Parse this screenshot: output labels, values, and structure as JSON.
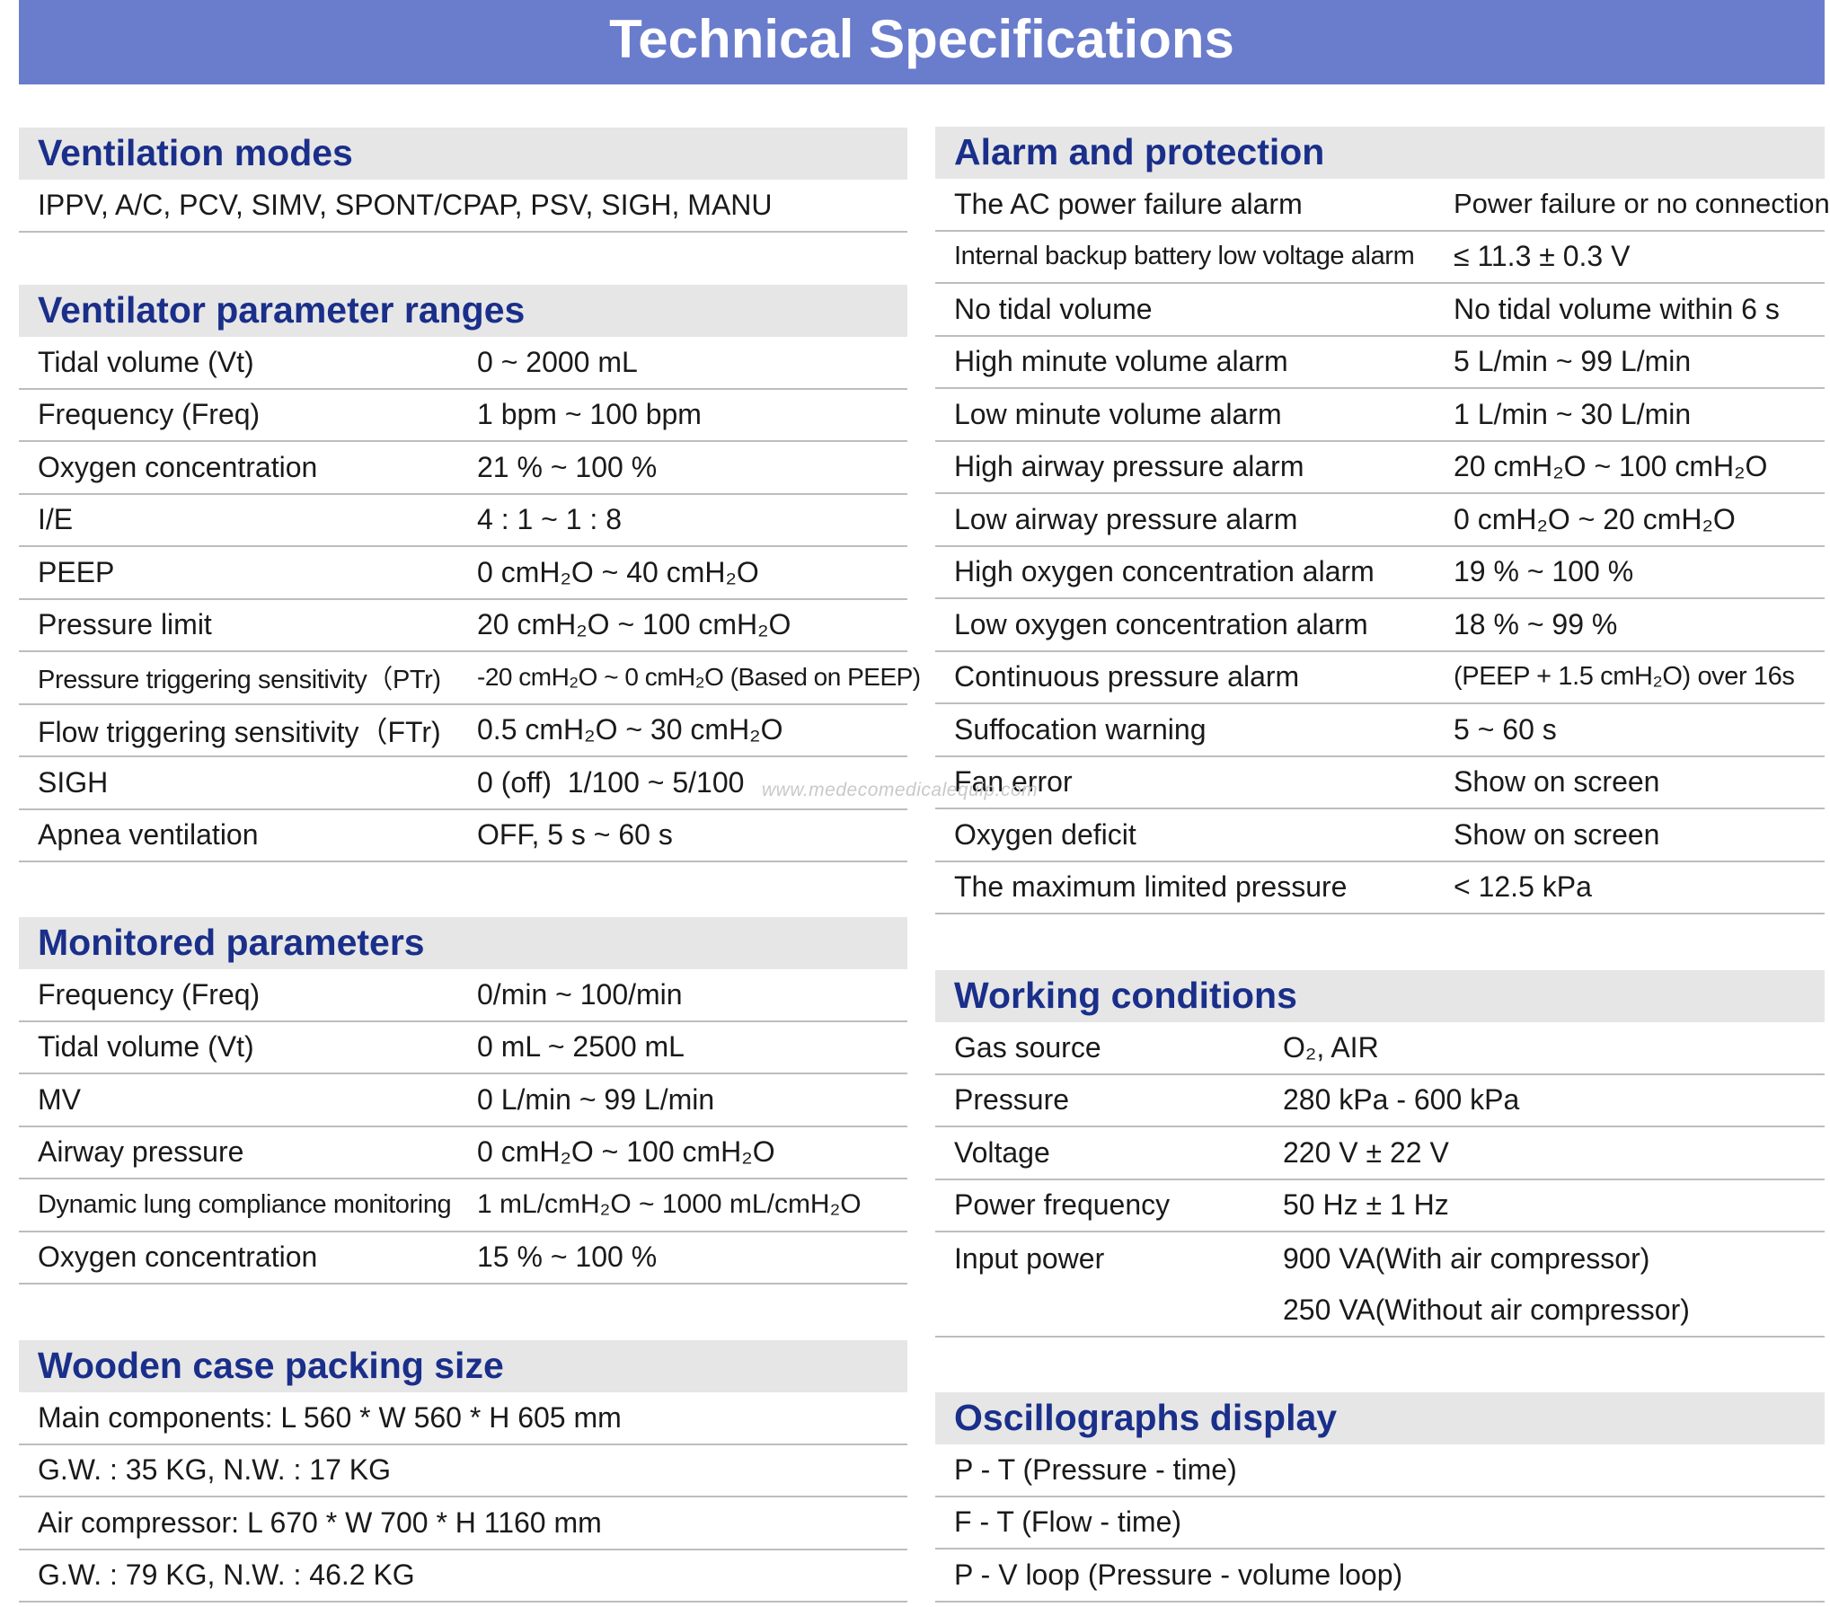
{
  "title": "Technical Specifications",
  "watermark": "www.medecomedicalequip.com",
  "colors": {
    "banner": "#6a7ccc",
    "heading": "#1a2f8a",
    "section_bg": "#e6e6e6",
    "divider": "#bdbdbd"
  },
  "ventilation_modes": {
    "title": "Ventilation modes",
    "text": "IPPV, A/C, PCV, SIMV, SPONT/CPAP, PSV, SIGH, MANU"
  },
  "ventilator_parameter_ranges": {
    "title": "Ventilator parameter ranges",
    "rows": [
      {
        "k": "Tidal volume (Vt)",
        "v": "0 ~ 2000 mL"
      },
      {
        "k": "Frequency (Freq)",
        "v": "1 bpm ~ 100 bpm"
      },
      {
        "k": "Oxygen concentration",
        "v": "21 % ~ 100 %"
      },
      {
        "k": "I/E",
        "v": "4 : 1 ~ 1 : 8"
      },
      {
        "k": "PEEP",
        "v": "0 cmH₂O ~ 40 cmH₂O"
      },
      {
        "k": "Pressure limit",
        "v": "20 cmH₂O ~ 100 cmH₂O"
      },
      {
        "k": "Pressure triggering sensitivity（PTr)",
        "v": "-20 cmH₂O ~ 0 cmH₂O (Based on PEEP)"
      },
      {
        "k": "Flow triggering sensitivity（FTr)",
        "v": "0.5 cmH₂O ~ 30 cmH₂O"
      },
      {
        "k": "SIGH",
        "v": "0 (off)  1/100 ~ 5/100"
      },
      {
        "k": "Apnea ventilation",
        "v": "OFF, 5 s ~ 60 s"
      }
    ]
  },
  "monitored_parameters": {
    "title": "Monitored parameters",
    "rows": [
      {
        "k": "Frequency (Freq)",
        "v": "0/min ~ 100/min"
      },
      {
        "k": "Tidal volume (Vt)",
        "v": "0 mL ~ 2500 mL"
      },
      {
        "k": "MV",
        "v": "0 L/min ~ 99 L/min"
      },
      {
        "k": "Airway pressure",
        "v": "0 cmH₂O ~ 100 cmH₂O"
      },
      {
        "k": "Dynamic lung compliance monitoring",
        "v": "1 mL/cmH₂O ~ 1000 mL/cmH₂O"
      },
      {
        "k": "Oxygen concentration",
        "v": "15 % ~ 100 %"
      }
    ]
  },
  "wooden_case_packing_size": {
    "title": "Wooden case packing size",
    "rows": [
      "Main components: L 560 * W 560 * H 605 mm",
      "G.W. : 35 KG, N.W. : 17 KG",
      "Air compressor: L 670 * W 700 * H 1160 mm",
      "G.W. : 79 KG, N.W. : 46.2 KG"
    ]
  },
  "alarm_and_protection": {
    "title": "Alarm and protection",
    "rows": [
      {
        "k": "The AC power failure alarm",
        "v": "Power failure or no connection"
      },
      {
        "k": "Internal backup battery low voltage alarm",
        "v": "≤ 11.3 ± 0.3 V"
      },
      {
        "k": "No tidal volume",
        "v": "No tidal volume within 6 s"
      },
      {
        "k": "High minute volume alarm",
        "v": "5 L/min ~ 99 L/min"
      },
      {
        "k": "Low minute volume alarm",
        "v": "1 L/min ~ 30 L/min"
      },
      {
        "k": "High airway pressure alarm",
        "v": "20 cmH₂O ~ 100 cmH₂O"
      },
      {
        "k": "Low airway pressure alarm",
        "v": "0 cmH₂O ~ 20 cmH₂O"
      },
      {
        "k": "High oxygen concentration alarm",
        "v": "19 % ~ 100 %"
      },
      {
        "k": "Low oxygen concentration alarm",
        "v": "18 % ~ 99 %"
      },
      {
        "k": "Continuous pressure alarm",
        "v": "(PEEP + 1.5 cmH₂O) over 16s"
      },
      {
        "k": "Suffocation warning",
        "v": "5 ~ 60 s"
      },
      {
        "k": "Fan error",
        "v": "Show on screen"
      },
      {
        "k": "Oxygen deficit",
        "v": "Show on screen"
      },
      {
        "k": "The maximum limited pressure",
        "v": "< 12.5 kPa"
      }
    ]
  },
  "working_conditions": {
    "title": "Working conditions",
    "rows": [
      {
        "k": "Gas source",
        "v": "O₂, AIR"
      },
      {
        "k": "Pressure",
        "v": "280 kPa - 600 kPa"
      },
      {
        "k": "Voltage",
        "v": "220 V ± 22 V"
      },
      {
        "k": "Power frequency",
        "v": "50 Hz ± 1 Hz"
      },
      {
        "k": "Input power",
        "v": "900 VA(With air compressor)"
      },
      {
        "k": "",
        "v": "250 VA(Without air compressor)"
      }
    ]
  },
  "oscillographs_display": {
    "title": "Oscillographs display",
    "rows": [
      "P - T (Pressure - time)",
      "F - T (Flow - time)",
      "P - V loop (Pressure - volume loop)"
    ]
  }
}
